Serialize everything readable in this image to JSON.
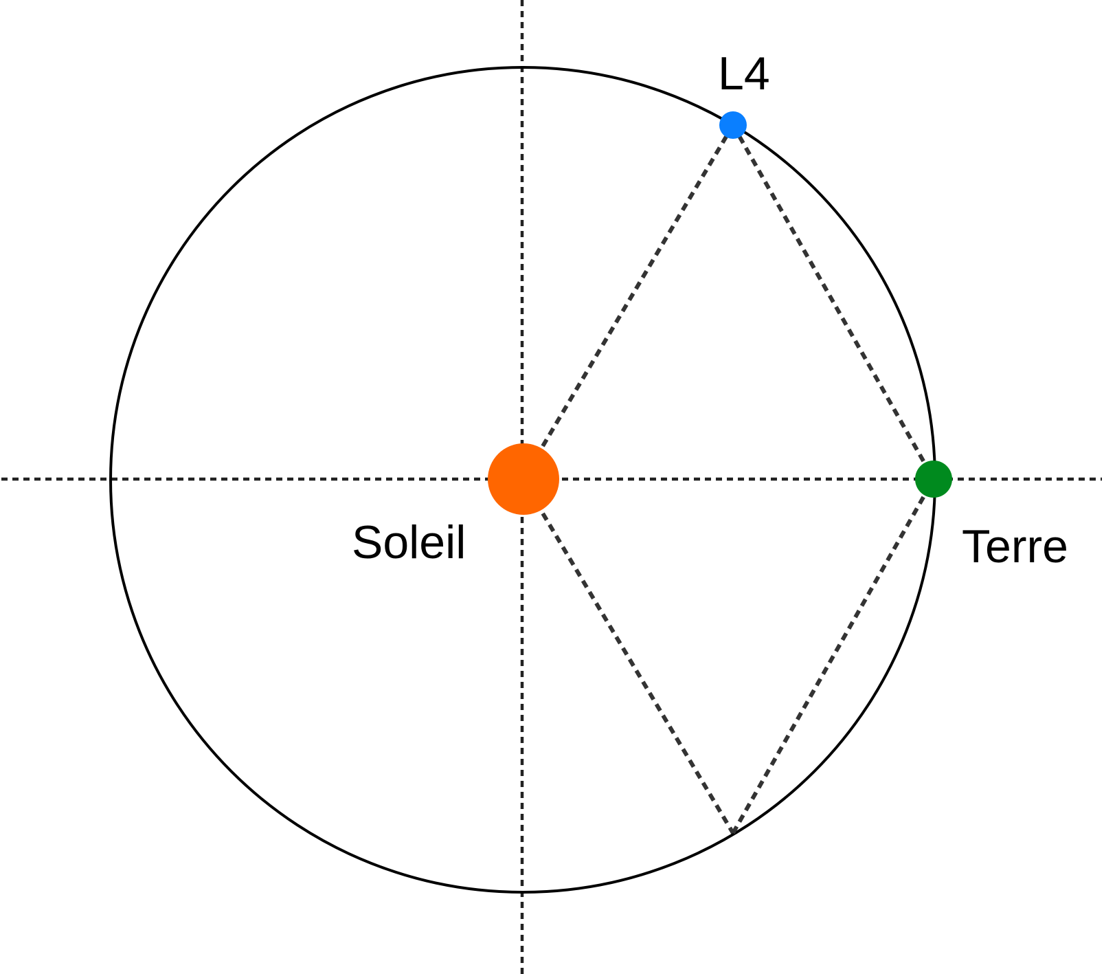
{
  "diagram": {
    "labels": {
      "sun": "Soleil",
      "earth": "Terre",
      "l4": "L4"
    },
    "colors": {
      "sun": "#ff6600",
      "earth": "#008a1e",
      "l4": "#0a7fff",
      "orbit": "#000000",
      "dashes": "#333333"
    },
    "angles_deg": {
      "earth": 0,
      "l4": 60,
      "l5": -60
    }
  }
}
